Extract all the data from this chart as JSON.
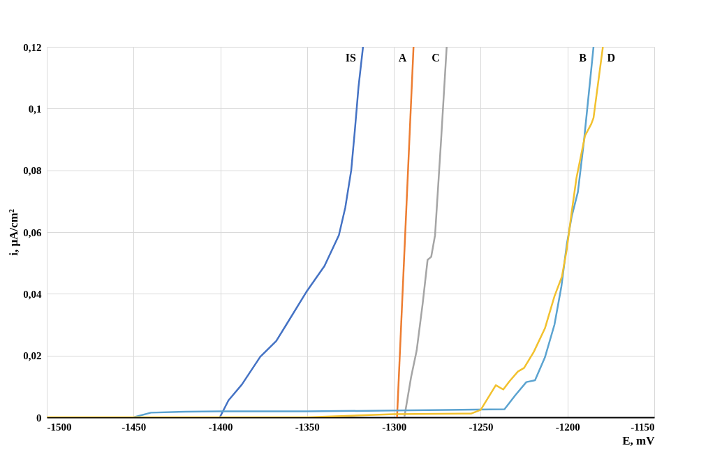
{
  "chart_data": {
    "type": "line",
    "xlabel": "E, mV",
    "ylabel": "i, μA/cm²",
    "xlim": [
      -1500,
      -1150
    ],
    "xticks": [
      -1500,
      -1450,
      -1400,
      -1350,
      -1300,
      -1250,
      -1200,
      -1150
    ],
    "ylim": [
      0,
      0.12
    ],
    "yticks": [
      0,
      {
        "value": 0.02,
        "label": "0,02"
      },
      {
        "value": 0.04,
        "label": "0,04"
      },
      {
        "value": 0.06,
        "label": "0,06"
      },
      {
        "value": 0.08,
        "label": "0,08"
      },
      {
        "value": 0.1,
        "label": "0,1"
      },
      {
        "value": 0.12,
        "label": "0,12"
      }
    ],
    "grid": true,
    "legend": false,
    "line_style": "solid",
    "marker": "none",
    "series": [
      {
        "name": "IS",
        "color": "#4472c4",
        "x": [
          -1400.3,
          -1395.3,
          -1387.6,
          -1377,
          -1367.8,
          -1362,
          -1350,
          -1340,
          -1331.7,
          -1328,
          -1324.6,
          -1322.5,
          -1320.4,
          -1317.8
        ],
        "values": [
          0,
          0.0055,
          0.0106,
          0.0196,
          0.0247,
          0.03,
          0.041,
          0.049,
          0.059,
          0.068,
          0.08,
          0.093,
          0.107,
          0.12
        ]
      },
      {
        "name": "A",
        "color": "#ed7d31",
        "x": [
          -1298.2,
          -1288.7
        ],
        "values": [
          0,
          0.12
        ]
      },
      {
        "name": "C",
        "color": "#a5a5a5",
        "x": [
          -1294,
          -1290.1,
          -1286.9,
          -1283.4,
          -1280.6,
          -1278.5,
          -1276.3,
          -1272.8,
          -1269.6
        ],
        "values": [
          0,
          0.013,
          0.0216,
          0.037,
          0.051,
          0.052,
          0.059,
          0.09,
          0.12
        ]
      },
      {
        "name": "B",
        "color": "#5ba3d0",
        "x": [
          -1450,
          -1440,
          -1420,
          -1400,
          -1350,
          -1300,
          -1270,
          -1236.3,
          -1230,
          -1223.7,
          -1218.7,
          -1213,
          -1207.5,
          -1203.5,
          -1200.4,
          -1197.6,
          -1194,
          -1190.6,
          -1187.7,
          -1185
        ],
        "values": [
          0,
          0.0015,
          0.0018,
          0.0019,
          0.0019,
          0.0022,
          0.0024,
          0.0026,
          0.0072,
          0.0114,
          0.012,
          0.0194,
          0.03,
          0.0424,
          0.056,
          0.065,
          0.073,
          0.089,
          0.105,
          0.12
        ]
      },
      {
        "name": "D",
        "color": "#f2c12e",
        "x": [
          -1500,
          -1350,
          -1300,
          -1260,
          -1255.4,
          -1250,
          -1241.3,
          -1237,
          -1233.5,
          -1228.6,
          -1225,
          -1219.4,
          -1213,
          -1207.5,
          -1203.2,
          -1200.4,
          -1197.6,
          -1194.8,
          -1189.9,
          -1186.3,
          -1185,
          -1182.8,
          -1179.6
        ],
        "values": [
          0,
          0,
          0.001,
          0.0012,
          0.0012,
          0.0024,
          0.0104,
          0.009,
          0.0116,
          0.0148,
          0.016,
          0.0212,
          0.0288,
          0.0392,
          0.0456,
          0.0544,
          0.0664,
          0.0776,
          0.0912,
          0.095,
          0.097,
          0.1064,
          0.12
        ]
      }
    ]
  }
}
